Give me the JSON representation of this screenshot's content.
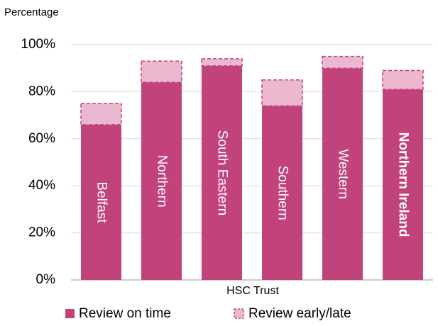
{
  "chart_data": {
    "type": "stacked_bar",
    "y_axis_label": "Percentage",
    "x_axis_label": "HSC Trust",
    "categories": [
      "Belfast",
      "Northern",
      "South Eastern",
      "Southern",
      "Western",
      "Northern Ireland"
    ],
    "series": [
      {
        "name": "Review on time",
        "color": "#c2437b",
        "values": [
          66,
          84,
          91,
          74,
          90,
          81
        ]
      },
      {
        "name": "Review early/late",
        "color": "#ebb8d0",
        "values": [
          9,
          9,
          3,
          11,
          5,
          8
        ]
      }
    ],
    "ylim": [
      0,
      100
    ],
    "yticks": [
      {
        "value": 0,
        "label": "0%"
      },
      {
        "value": 20,
        "label": "20%"
      },
      {
        "value": 40,
        "label": "40%"
      },
      {
        "value": 60,
        "label": "60%"
      },
      {
        "value": 80,
        "label": "80%"
      },
      {
        "value": 100,
        "label": "100%"
      }
    ],
    "grid": true
  }
}
